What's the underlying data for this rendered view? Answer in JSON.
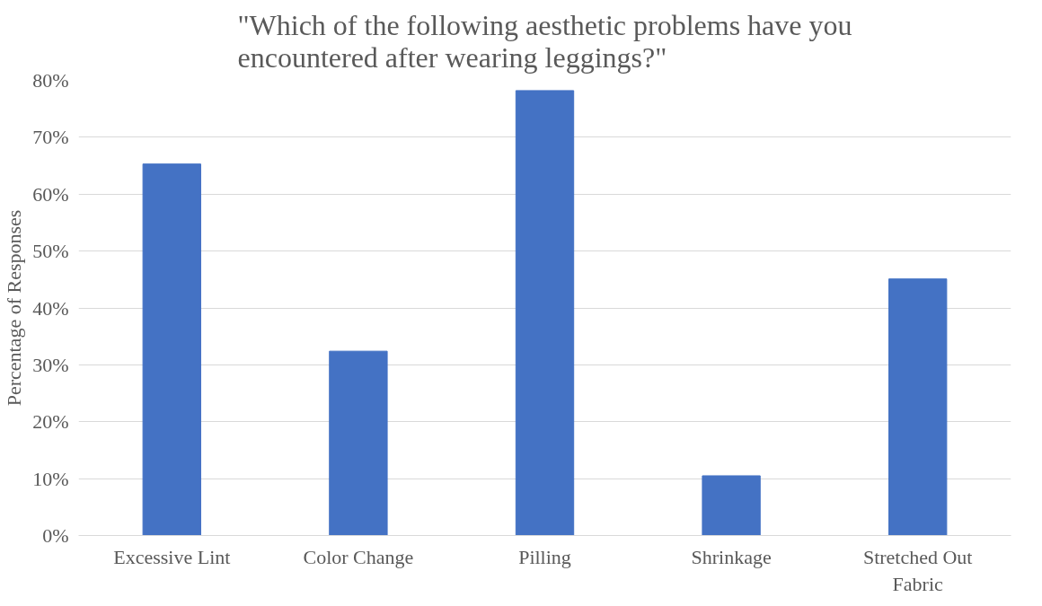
{
  "chart_data": {
    "type": "bar",
    "title": "\"Which of the following aesthetic problems have you encountered after wearing leggings?\"",
    "ylabel": "Percentage of Responses",
    "categories": [
      "Excessive Lint",
      "Color Change",
      "Pilling",
      "Shrinkage",
      "Stretched Out Fabric"
    ],
    "values": [
      65.3,
      32.4,
      78.2,
      10.5,
      45.1
    ],
    "color": "#4472c4",
    "ylim": [
      0,
      80
    ],
    "yticks": [
      {
        "value": 0,
        "label": "0%"
      },
      {
        "value": 10,
        "label": "10%"
      },
      {
        "value": 20,
        "label": "20%"
      },
      {
        "value": 30,
        "label": "30%"
      },
      {
        "value": 40,
        "label": "40%"
      },
      {
        "value": 50,
        "label": "50%"
      },
      {
        "value": 60,
        "label": "60%"
      },
      {
        "value": 70,
        "label": "70%"
      },
      {
        "value": 80,
        "label": "80%"
      }
    ],
    "grid": "y"
  }
}
